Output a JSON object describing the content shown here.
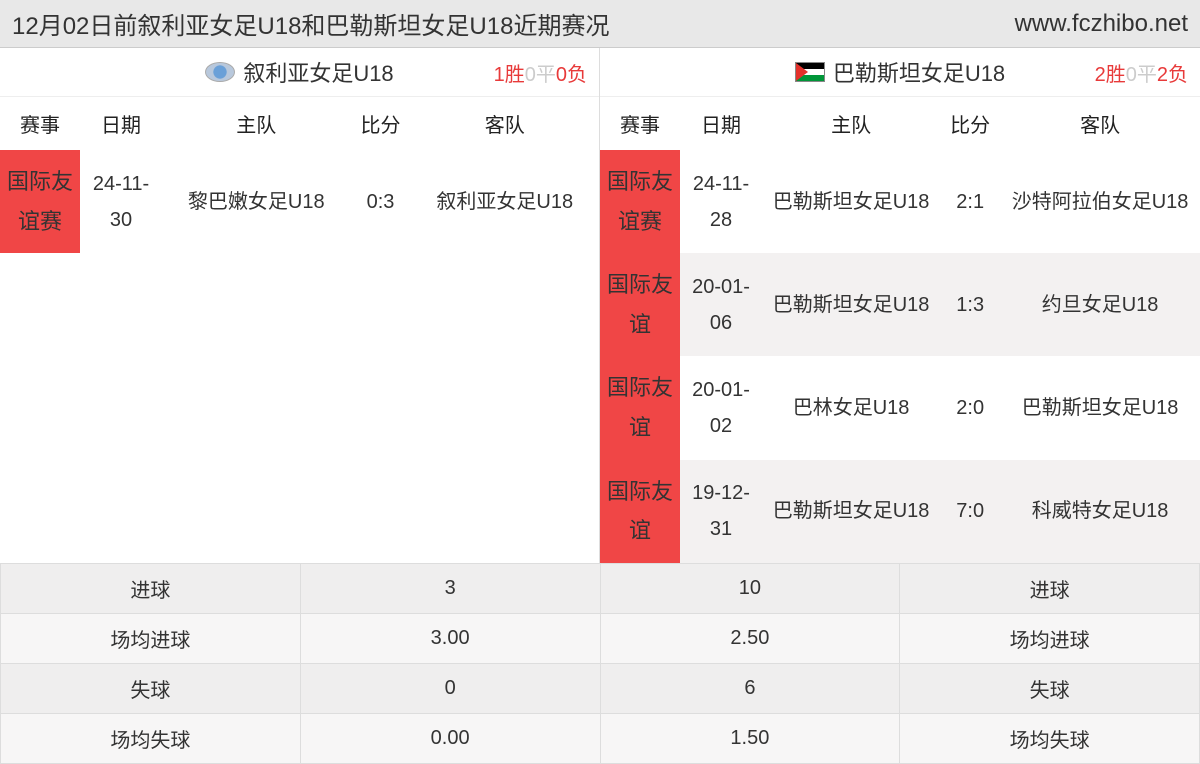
{
  "header": {
    "title": "12月02日前叙利亚女足U18和巴勒斯坦女足U18近期赛况",
    "site": "www.fczhibo.net"
  },
  "columns": {
    "comp": "赛事",
    "date": "日期",
    "home": "主队",
    "score": "比分",
    "away": "客队"
  },
  "left": {
    "team": "叙利亚女足U18",
    "record": {
      "win": "1胜",
      "draw": "0平",
      "loss": "0负"
    },
    "matches": [
      {
        "comp": "国际友谊赛",
        "date": "24-11-30",
        "home": "黎巴嫩女足U18",
        "score": "0:3",
        "away": "叙利亚女足U18",
        "alt": false
      }
    ]
  },
  "right": {
    "team": "巴勒斯坦女足U18",
    "record": {
      "win": "2胜",
      "draw": "0平",
      "loss": "2负"
    },
    "matches": [
      {
        "comp": "国际友谊赛",
        "date": "24-11-28",
        "home": "巴勒斯坦女足U18",
        "score": "2:1",
        "away": "沙特阿拉伯女足U18",
        "alt": false
      },
      {
        "comp": "国际友谊",
        "date": "20-01-06",
        "home": "巴勒斯坦女足U18",
        "score": "1:3",
        "away": "约旦女足U18",
        "alt": true
      },
      {
        "comp": "国际友谊",
        "date": "20-01-02",
        "home": "巴林女足U18",
        "score": "2:0",
        "away": "巴勒斯坦女足U18",
        "alt": false
      },
      {
        "comp": "国际友谊",
        "date": "19-12-31",
        "home": "巴勒斯坦女足U18",
        "score": "7:0",
        "away": "科威特女足U18",
        "alt": true
      }
    ]
  },
  "stats": {
    "rows": [
      {
        "label_l": "进球",
        "val_l": "3",
        "val_r": "10",
        "label_r": "进球"
      },
      {
        "label_l": "场均进球",
        "val_l": "3.00",
        "val_r": "2.50",
        "label_r": "场均进球"
      },
      {
        "label_l": "失球",
        "val_l": "0",
        "val_r": "6",
        "label_r": "失球"
      },
      {
        "label_l": "场均失球",
        "val_l": "0.00",
        "val_r": "1.50",
        "label_r": "场均失球"
      }
    ]
  },
  "colors": {
    "competition_bg": "#f04646",
    "win_color": "#e83a3a",
    "draw_color": "#cccccc",
    "header_bg": "#e8e8e8",
    "alt_row_bg": "#f3f1f1"
  }
}
